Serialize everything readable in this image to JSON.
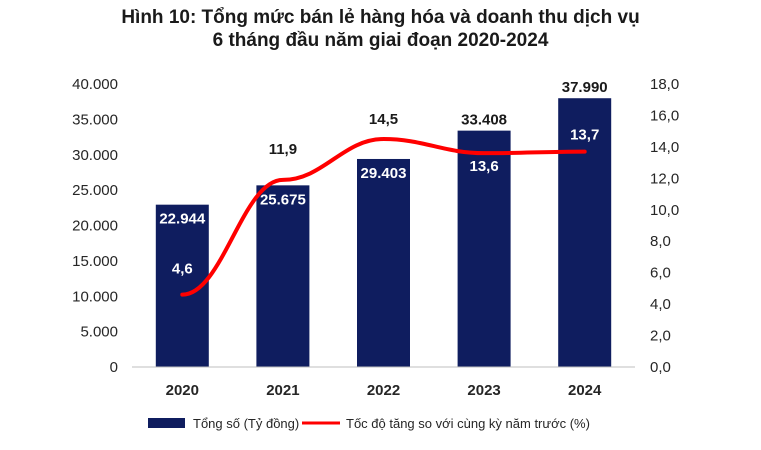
{
  "chart_data": {
    "type": "bar+line",
    "title_line1": "Hình 10: Tổng mức bán lẻ hàng hóa và doanh thu dịch vụ",
    "title_line2": "6 tháng đầu năm giai đoạn 2020-2024",
    "categories": [
      "2020",
      "2021",
      "2022",
      "2023",
      "2024"
    ],
    "bar_series": {
      "name": "Tổng số (Tỷ đồng)",
      "values": [
        22944,
        25675,
        29403,
        33408,
        37990
      ],
      "labels": [
        "22.944",
        "25.675",
        "29.403",
        "33.408",
        "37.990"
      ],
      "color": "#0f1d5f"
    },
    "line_series": {
      "name": "Tốc độ tăng so với cùng kỳ năm trước (%)",
      "values": [
        4.6,
        11.9,
        14.5,
        13.6,
        13.7
      ],
      "labels": [
        "4,6",
        "11,9",
        "14,5",
        "13,6",
        "13,7"
      ],
      "color": "#ff0000"
    },
    "y_left": {
      "min": 0,
      "max": 40000,
      "ticks": [
        "0",
        "5.000",
        "10.000",
        "15.000",
        "20.000",
        "25.000",
        "30.000",
        "35.000",
        "40.000"
      ]
    },
    "y_right": {
      "min": 0,
      "max": 18,
      "ticks": [
        "0,0",
        "2,0",
        "4,0",
        "6,0",
        "8,0",
        "10,0",
        "12,0",
        "14,0",
        "16,0",
        "18,0"
      ]
    },
    "grid": false,
    "legend": "bottom"
  }
}
